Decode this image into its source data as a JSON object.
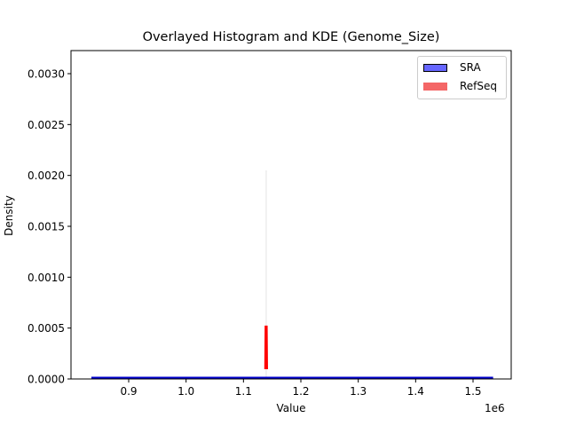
{
  "chart_data": {
    "type": "histogram+kde",
    "title": "Overlayed Histogram and KDE (Genome_Size)",
    "xlabel": "Value",
    "ylabel": "Density",
    "x_offset_label": "1e6",
    "xlim": [
      0.82,
      1.585
    ],
    "ylim": [
      0.0,
      0.0032
    ],
    "x_ticks": [
      0.9,
      1.0,
      1.1,
      1.2,
      1.3,
      1.4,
      1.5
    ],
    "x_tick_labels": [
      "0.9",
      "1.0",
      "1.1",
      "1.2",
      "1.3",
      "1.4",
      "1.5"
    ],
    "y_ticks": [
      0.0,
      0.0005,
      0.001,
      0.0015,
      0.002,
      0.0025,
      0.003
    ],
    "y_tick_labels": [
      "0.0000",
      "0.0005",
      "0.0010",
      "0.0015",
      "0.0020",
      "0.0025",
      "0.0030"
    ],
    "grid": false,
    "legend_position": "upper right",
    "legend": [
      "SRA",
      "RefSeq"
    ],
    "series": [
      {
        "name": "SRA",
        "color": "#0000cc",
        "fill": "#6666ff",
        "kde_x": [
          0.835,
          0.9,
          1.0,
          1.1,
          1.13,
          1.14,
          1.15,
          1.2,
          1.3,
          1.4,
          1.5,
          1.535
        ],
        "kde_y": [
          2e-06,
          2e-06,
          3e-06,
          6e-06,
          1e-05,
          1.2e-05,
          1e-05,
          6e-06,
          3e-06,
          2e-06,
          2e-06,
          2e-06
        ]
      },
      {
        "name": "RefSeq",
        "color": "#ff0000",
        "fill": "#f46666",
        "kde_x": [
          1.1385,
          1.139,
          1.1395,
          1.14,
          1.1405
        ],
        "kde_y": [
          0.0001,
          0.00025,
          0.00052,
          0.00025,
          0.0001
        ],
        "hist_peak_value_x": 1.1395,
        "hist_peak_density": 0.00205
      }
    ]
  }
}
